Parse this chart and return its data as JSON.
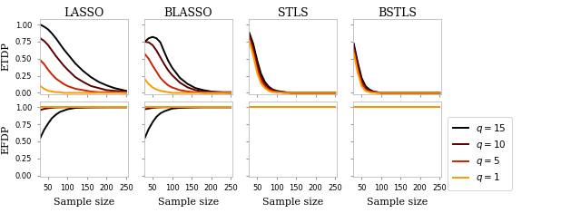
{
  "titles": [
    "LASSO",
    "BLASSO",
    "STLS",
    "BSTLS"
  ],
  "ylabel_top": "ETDP",
  "ylabel_bottom": "EFDP",
  "xlabel": "Sample size",
  "x": [
    30,
    40,
    50,
    60,
    70,
    80,
    90,
    100,
    120,
    140,
    160,
    180,
    200,
    220,
    250
  ],
  "colors": [
    "#000000",
    "#5a0000",
    "#cc2200",
    "#ff9900"
  ],
  "labels": [
    "$q = 15$",
    "$q = 10$",
    "$q = 5$",
    "$q = 1$"
  ],
  "linewidths": [
    1.4,
    1.4,
    1.4,
    1.4
  ],
  "xlim": [
    28,
    255
  ],
  "xticks": [
    50,
    100,
    150,
    200,
    250
  ],
  "etdp_ylim": [
    -0.02,
    1.08
  ],
  "efdp_ylim": [
    -0.02,
    1.08
  ],
  "etdp_yticks": [
    0.0,
    0.25,
    0.5,
    0.75,
    1.0
  ],
  "efdp_yticks": [
    0.0,
    0.25,
    0.5,
    0.75,
    1.0
  ],
  "etdp_lasso": {
    "q15": [
      1.0,
      0.97,
      0.93,
      0.87,
      0.8,
      0.72,
      0.64,
      0.57,
      0.43,
      0.32,
      0.23,
      0.16,
      0.11,
      0.07,
      0.03
    ],
    "q10": [
      0.8,
      0.76,
      0.7,
      0.62,
      0.54,
      0.47,
      0.4,
      0.34,
      0.23,
      0.16,
      0.1,
      0.07,
      0.04,
      0.03,
      0.02
    ],
    "q5": [
      0.48,
      0.42,
      0.34,
      0.27,
      0.21,
      0.17,
      0.13,
      0.1,
      0.06,
      0.04,
      0.02,
      0.01,
      0.01,
      0.01,
      0.0
    ],
    "q1": [
      0.1,
      0.06,
      0.03,
      0.02,
      0.01,
      0.01,
      0.0,
      0.0,
      0.0,
      0.0,
      0.0,
      0.0,
      0.0,
      0.0,
      0.0
    ]
  },
  "efdp_lasso": {
    "q15": [
      0.55,
      0.67,
      0.76,
      0.84,
      0.89,
      0.93,
      0.95,
      0.97,
      0.99,
      0.995,
      0.998,
      0.999,
      1.0,
      1.0,
      1.0
    ],
    "q10": [
      0.96,
      0.975,
      0.985,
      0.992,
      0.996,
      0.998,
      1.0,
      1.0,
      1.0,
      1.0,
      1.0,
      1.0,
      1.0,
      1.0,
      1.0
    ],
    "q5": [
      1.0,
      1.0,
      1.0,
      1.0,
      1.0,
      1.0,
      1.0,
      1.0,
      1.0,
      1.0,
      1.0,
      1.0,
      1.0,
      1.0,
      1.0
    ],
    "q1": [
      1.0,
      1.0,
      1.0,
      1.0,
      1.0,
      1.0,
      1.0,
      1.0,
      1.0,
      1.0,
      1.0,
      1.0,
      1.0,
      1.0,
      1.0
    ]
  },
  "etdp_blasso": {
    "q15": [
      0.75,
      0.8,
      0.82,
      0.8,
      0.74,
      0.6,
      0.47,
      0.37,
      0.22,
      0.13,
      0.07,
      0.04,
      0.02,
      0.01,
      0.01
    ],
    "q10": [
      0.75,
      0.74,
      0.7,
      0.62,
      0.52,
      0.42,
      0.33,
      0.26,
      0.15,
      0.08,
      0.04,
      0.02,
      0.01,
      0.01,
      0.0
    ],
    "q5": [
      0.57,
      0.5,
      0.4,
      0.31,
      0.22,
      0.16,
      0.11,
      0.08,
      0.04,
      0.02,
      0.01,
      0.0,
      0.0,
      0.0,
      0.0
    ],
    "q1": [
      0.2,
      0.13,
      0.08,
      0.05,
      0.03,
      0.02,
      0.01,
      0.0,
      0.0,
      0.0,
      0.0,
      0.0,
      0.0,
      0.0,
      0.0
    ]
  },
  "efdp_blasso": {
    "q15": [
      0.55,
      0.68,
      0.78,
      0.86,
      0.91,
      0.94,
      0.96,
      0.98,
      0.99,
      0.995,
      0.998,
      1.0,
      1.0,
      1.0,
      1.0
    ],
    "q10": [
      0.97,
      0.98,
      0.99,
      0.995,
      0.998,
      1.0,
      1.0,
      1.0,
      1.0,
      1.0,
      1.0,
      1.0,
      1.0,
      1.0,
      1.0
    ],
    "q5": [
      1.0,
      1.0,
      1.0,
      1.0,
      1.0,
      1.0,
      1.0,
      1.0,
      1.0,
      1.0,
      1.0,
      1.0,
      1.0,
      1.0,
      1.0
    ],
    "q1": [
      1.0,
      1.0,
      1.0,
      1.0,
      1.0,
      1.0,
      1.0,
      1.0,
      1.0,
      1.0,
      1.0,
      1.0,
      1.0,
      1.0,
      1.0
    ]
  },
  "etdp_stls": {
    "q15": [
      0.88,
      0.72,
      0.48,
      0.28,
      0.16,
      0.09,
      0.05,
      0.03,
      0.01,
      0.0,
      0.0,
      0.0,
      0.0,
      0.0,
      0.0
    ],
    "q10": [
      0.84,
      0.66,
      0.42,
      0.23,
      0.13,
      0.07,
      0.04,
      0.02,
      0.01,
      0.0,
      0.0,
      0.0,
      0.0,
      0.0,
      0.0
    ],
    "q5": [
      0.8,
      0.6,
      0.36,
      0.18,
      0.1,
      0.05,
      0.03,
      0.01,
      0.0,
      0.0,
      0.0,
      0.0,
      0.0,
      0.0,
      0.0
    ],
    "q1": [
      0.76,
      0.55,
      0.3,
      0.14,
      0.07,
      0.03,
      0.01,
      0.01,
      0.0,
      0.0,
      0.0,
      0.0,
      0.0,
      0.0,
      0.0
    ]
  },
  "efdp_stls": {
    "q15": [
      1.0,
      1.0,
      1.0,
      1.0,
      1.0,
      1.0,
      1.0,
      1.0,
      1.0,
      1.0,
      1.0,
      1.0,
      1.0,
      1.0,
      1.0
    ],
    "q10": [
      1.0,
      1.0,
      1.0,
      1.0,
      1.0,
      1.0,
      1.0,
      1.0,
      1.0,
      1.0,
      1.0,
      1.0,
      1.0,
      1.0,
      1.0
    ],
    "q5": [
      1.0,
      1.0,
      1.0,
      1.0,
      1.0,
      1.0,
      1.0,
      1.0,
      1.0,
      1.0,
      1.0,
      1.0,
      1.0,
      1.0,
      1.0
    ],
    "q1": [
      1.0,
      1.0,
      1.0,
      1.0,
      1.0,
      1.0,
      1.0,
      1.0,
      1.0,
      1.0,
      1.0,
      1.0,
      1.0,
      1.0,
      1.0
    ]
  },
  "etdp_bstls": {
    "q15": [
      0.72,
      0.45,
      0.22,
      0.1,
      0.05,
      0.02,
      0.01,
      0.0,
      0.0,
      0.0,
      0.0,
      0.0,
      0.0,
      0.0,
      0.0
    ],
    "q10": [
      0.68,
      0.4,
      0.18,
      0.08,
      0.03,
      0.01,
      0.01,
      0.0,
      0.0,
      0.0,
      0.0,
      0.0,
      0.0,
      0.0,
      0.0
    ],
    "q5": [
      0.63,
      0.35,
      0.14,
      0.05,
      0.02,
      0.01,
      0.0,
      0.0,
      0.0,
      0.0,
      0.0,
      0.0,
      0.0,
      0.0,
      0.0
    ],
    "q1": [
      0.58,
      0.3,
      0.1,
      0.03,
      0.01,
      0.0,
      0.0,
      0.0,
      0.0,
      0.0,
      0.0,
      0.0,
      0.0,
      0.0,
      0.0
    ]
  },
  "efdp_bstls": {
    "q15": [
      1.0,
      1.0,
      1.0,
      1.0,
      1.0,
      1.0,
      1.0,
      1.0,
      1.0,
      1.0,
      1.0,
      1.0,
      1.0,
      1.0,
      1.0
    ],
    "q10": [
      1.0,
      1.0,
      1.0,
      1.0,
      1.0,
      1.0,
      1.0,
      1.0,
      1.0,
      1.0,
      1.0,
      1.0,
      1.0,
      1.0,
      1.0
    ],
    "q5": [
      1.0,
      1.0,
      1.0,
      1.0,
      1.0,
      1.0,
      1.0,
      1.0,
      1.0,
      1.0,
      1.0,
      1.0,
      1.0,
      1.0,
      1.0
    ],
    "q1": [
      1.0,
      1.0,
      1.0,
      1.0,
      1.0,
      1.0,
      1.0,
      1.0,
      1.0,
      1.0,
      1.0,
      1.0,
      1.0,
      1.0,
      1.0
    ]
  }
}
